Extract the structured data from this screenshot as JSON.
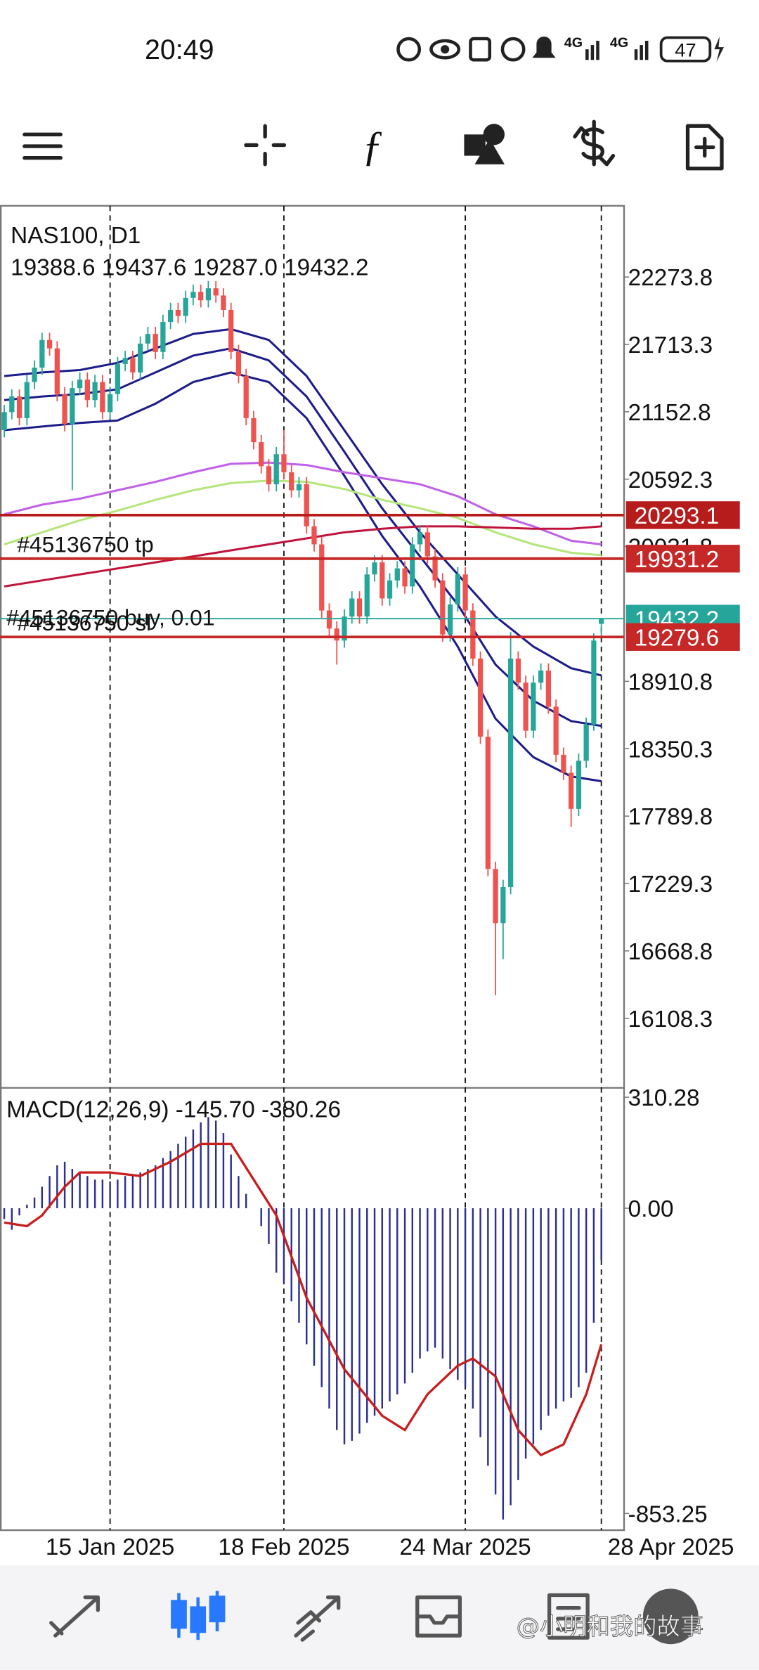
{
  "status_bar": {
    "time": "20:49",
    "network": [
      "4G",
      "4G"
    ],
    "battery": "47"
  },
  "chart_data": [
    {
      "type": "candlestick",
      "title": "NAS100, D1",
      "subtitle": "19388.6 19437.6 19287.0 19432.2",
      "categories": [
        null,
        null,
        null,
        null,
        null,
        null,
        null,
        null,
        null,
        null,
        null,
        null,
        null,
        null,
        "15 Jan 2025",
        null,
        null,
        null,
        null,
        null,
        null,
        null,
        null,
        null,
        null,
        null,
        null,
        null,
        null,
        null,
        null,
        null,
        null,
        null,
        null,
        null,
        null,
        "18 Feb 2025",
        null,
        null,
        null,
        null,
        null,
        null,
        null,
        null,
        null,
        null,
        null,
        null,
        null,
        null,
        null,
        null,
        null,
        null,
        null,
        null,
        null,
        null,
        null,
        "24 Mar 2025",
        null,
        null,
        null,
        null,
        null,
        null,
        null,
        null,
        null,
        null,
        null,
        null,
        null,
        null,
        null,
        null,
        null,
        "28 Apr 2025"
      ],
      "open": [
        21000,
        21150,
        21280,
        21100,
        21400,
        21520,
        21750,
        21680,
        21300,
        21050,
        21350,
        21420,
        21250,
        21400,
        21150,
        21300,
        21550,
        21600,
        21480,
        21720,
        21800,
        21650,
        21900,
        22000,
        21950,
        22100,
        22150,
        22080,
        22180,
        22120,
        22000,
        21650,
        21450,
        21100,
        20900,
        20700,
        20550,
        20800,
        20650,
        20500,
        20550,
        20200,
        20050,
        19500,
        19350,
        19250,
        19450,
        19600,
        19450,
        19800,
        19900,
        19600,
        19750,
        19850,
        19700,
        20050,
        20150,
        19950,
        19750,
        19300,
        19550,
        19800,
        19500,
        19100,
        18450,
        17350,
        16900,
        17200,
        19100,
        18900,
        18500,
        18900,
        19000,
        18700,
        18300,
        18150,
        17850,
        18250,
        18550,
        19388.6
      ],
      "high": [
        21210,
        21340,
        21340,
        21460,
        21580,
        21810,
        21810,
        21740,
        21360,
        21410,
        21480,
        21480,
        21460,
        21460,
        21360,
        21610,
        21660,
        21660,
        21780,
        21860,
        21860,
        21960,
        22060,
        22060,
        22160,
        22210,
        22210,
        22240,
        22240,
        22180,
        22060,
        21710,
        21510,
        21160,
        20960,
        20760,
        20860,
        21000,
        20710,
        20610,
        20610,
        20260,
        20110,
        19560,
        19410,
        19510,
        19660,
        19660,
        19860,
        19960,
        19960,
        19810,
        19910,
        19910,
        20110,
        20210,
        20210,
        20010,
        19810,
        19610,
        19860,
        19860,
        19560,
        19160,
        18510,
        17410,
        17260,
        19320,
        19160,
        18960,
        18960,
        19060,
        19060,
        18760,
        18360,
        18210,
        18310,
        18610,
        19310,
        19437.6
      ],
      "low": [
        20940,
        21090,
        21040,
        21040,
        21340,
        21460,
        21620,
        21240,
        20990,
        20500,
        21290,
        21190,
        21190,
        21090,
        21090,
        21240,
        21490,
        21420,
        21420,
        21660,
        21590,
        21590,
        21840,
        21890,
        21890,
        22040,
        22020,
        22020,
        22060,
        21940,
        21590,
        21390,
        21040,
        20840,
        20640,
        20490,
        20490,
        20590,
        20440,
        20440,
        20140,
        19990,
        19440,
        19290,
        19050,
        19190,
        19390,
        19390,
        19390,
        19740,
        19540,
        19540,
        19690,
        19640,
        19640,
        19990,
        19890,
        19690,
        19240,
        19240,
        19490,
        19440,
        19040,
        18390,
        17290,
        16300,
        16600,
        17140,
        18840,
        18440,
        18440,
        18840,
        18640,
        18240,
        18090,
        17700,
        17790,
        18190,
        18500,
        19287.0
      ],
      "close": [
        21150,
        21280,
        21100,
        21400,
        21520,
        21750,
        21680,
        21300,
        21050,
        21350,
        21420,
        21250,
        21400,
        21150,
        21300,
        21550,
        21600,
        21480,
        21720,
        21800,
        21650,
        21900,
        22000,
        21950,
        22100,
        22150,
        22080,
        22180,
        22120,
        22000,
        21650,
        21450,
        21100,
        20900,
        20700,
        20550,
        20800,
        20650,
        20500,
        20550,
        20200,
        20050,
        19500,
        19350,
        19250,
        19450,
        19600,
        19450,
        19800,
        19900,
        19600,
        19750,
        19850,
        19700,
        20050,
        20150,
        19950,
        19750,
        19300,
        19550,
        19800,
        19500,
        19100,
        18450,
        17350,
        16900,
        17200,
        19100,
        18900,
        18500,
        18900,
        19000,
        18700,
        18300,
        18150,
        17850,
        18250,
        18550,
        19250,
        19432.2
      ],
      "up_color": "#26a69a",
      "down_color": "#ef5350",
      "ylim": [
        15534,
        22866
      ],
      "yticks": [
        22273.8,
        21713.3,
        21152.8,
        20592.3,
        20031.8,
        18910.8,
        18350.3,
        17789.8,
        17229.3,
        16668.8,
        16108.3
      ],
      "overlays": [
        {
          "color": "#1c1c8a",
          "x": [
            0,
            5,
            10,
            15,
            20,
            25,
            30,
            35,
            40,
            45,
            50,
            55,
            60,
            65,
            70,
            75,
            79
          ],
          "values": [
            21450,
            21480,
            21500,
            21560,
            21680,
            21800,
            21840,
            21750,
            21450,
            21000,
            20550,
            20150,
            19800,
            19450,
            19200,
            19020,
            18960
          ]
        },
        {
          "color": "#1c1c8a",
          "x": [
            0,
            5,
            10,
            15,
            20,
            25,
            30,
            35,
            40,
            45,
            50,
            55,
            60,
            65,
            70,
            75,
            79
          ],
          "values": [
            21250,
            21280,
            21300,
            21340,
            21480,
            21620,
            21680,
            21580,
            21280,
            20820,
            20350,
            19950,
            19550,
            19050,
            18750,
            18580,
            18540
          ]
        },
        {
          "color": "#1c1c8a",
          "x": [
            0,
            5,
            10,
            15,
            20,
            25,
            30,
            35,
            40,
            45,
            50,
            55,
            60,
            65,
            70,
            75,
            79
          ],
          "values": [
            21000,
            21030,
            21060,
            21080,
            21220,
            21400,
            21480,
            21400,
            21100,
            20620,
            20120,
            19700,
            19200,
            18600,
            18280,
            18120,
            18080
          ]
        },
        {
          "color": "#c061e8",
          "x": [
            0,
            5,
            10,
            15,
            20,
            25,
            30,
            35,
            40,
            45,
            50,
            55,
            60,
            65,
            70,
            75,
            79
          ],
          "values": [
            20300,
            20380,
            20430,
            20500,
            20570,
            20650,
            20720,
            20730,
            20710,
            20650,
            20600,
            20550,
            20450,
            20300,
            20200,
            20080,
            20050
          ]
        },
        {
          "color": "#b5e67a",
          "x": [
            0,
            5,
            10,
            15,
            20,
            25,
            30,
            35,
            40,
            45,
            50,
            55,
            60,
            65,
            70,
            75,
            79
          ],
          "values": [
            20050,
            20150,
            20250,
            20330,
            20420,
            20500,
            20560,
            20580,
            20570,
            20510,
            20420,
            20350,
            20270,
            20150,
            20050,
            19980,
            19960
          ]
        },
        {
          "color": "#c0143c",
          "x": [
            0,
            5,
            10,
            15,
            20,
            25,
            30,
            35,
            40,
            45,
            50,
            55,
            60,
            65,
            70,
            75,
            79
          ],
          "values": [
            19700,
            19750,
            19800,
            19850,
            19900,
            19950,
            20000,
            20050,
            20100,
            20150,
            20180,
            20200,
            20200,
            20190,
            20180,
            20180,
            20200
          ]
        }
      ],
      "levels": [
        {
          "value": 20293.1,
          "color": "#b71c1c"
        },
        {
          "value": 19931.2,
          "color": "#c62828",
          "label": "#45136750 tp"
        },
        {
          "value": 19432.2,
          "color": "#26a69a",
          "label": "#45136750 buy, 0.01"
        },
        {
          "value": 19279.6,
          "color": "#c62828",
          "label": "#45136750 sl"
        }
      ]
    },
    {
      "type": "macd",
      "title": "MACD(12,26,9) -145.70 -380.26",
      "color": "#2b2f8f",
      "values": [
        -30,
        -60,
        -20,
        10,
        30,
        60,
        90,
        120,
        130,
        110,
        100,
        90,
        80,
        80,
        75,
        80,
        90,
        95,
        100,
        110,
        120,
        140,
        160,
        180,
        200,
        220,
        240,
        255,
        245,
        210,
        150,
        90,
        40,
        0,
        -50,
        -100,
        -180,
        -210,
        -260,
        -320,
        -380,
        -440,
        -500,
        -560,
        -620,
        -660,
        -650,
        -630,
        -600,
        -580,
        -560,
        -540,
        -520,
        -490,
        -460,
        -420,
        -400,
        -390,
        -420,
        -450,
        -480,
        -500,
        -560,
        -640,
        -720,
        -800,
        -870,
        -830,
        -760,
        -700,
        -660,
        -620,
        -580,
        -560,
        -540,
        -530,
        -500,
        -460,
        -320,
        -145.7
      ],
      "series": [
        {
          "color": "#c81e1e",
          "x": [
            0,
            3,
            5,
            8,
            10,
            14,
            18,
            22,
            26,
            30,
            33,
            36,
            40,
            45,
            50,
            53,
            56,
            60,
            62,
            65,
            68,
            71,
            74,
            77,
            79
          ],
          "values": [
            -40,
            -50,
            -20,
            60,
            100,
            100,
            90,
            130,
            180,
            180,
            80,
            -20,
            -250,
            -450,
            -580,
            -620,
            -520,
            -440,
            -420,
            -470,
            -620,
            -690,
            -660,
            -520,
            -380.26
          ]
        }
      ],
      "ylim": [
        -900,
        335
      ],
      "yticks": [
        310.28,
        {
          "value": 0,
          "label": "0.00"
        },
        -853.25
      ]
    }
  ],
  "watermark": "@小明和我的故事"
}
